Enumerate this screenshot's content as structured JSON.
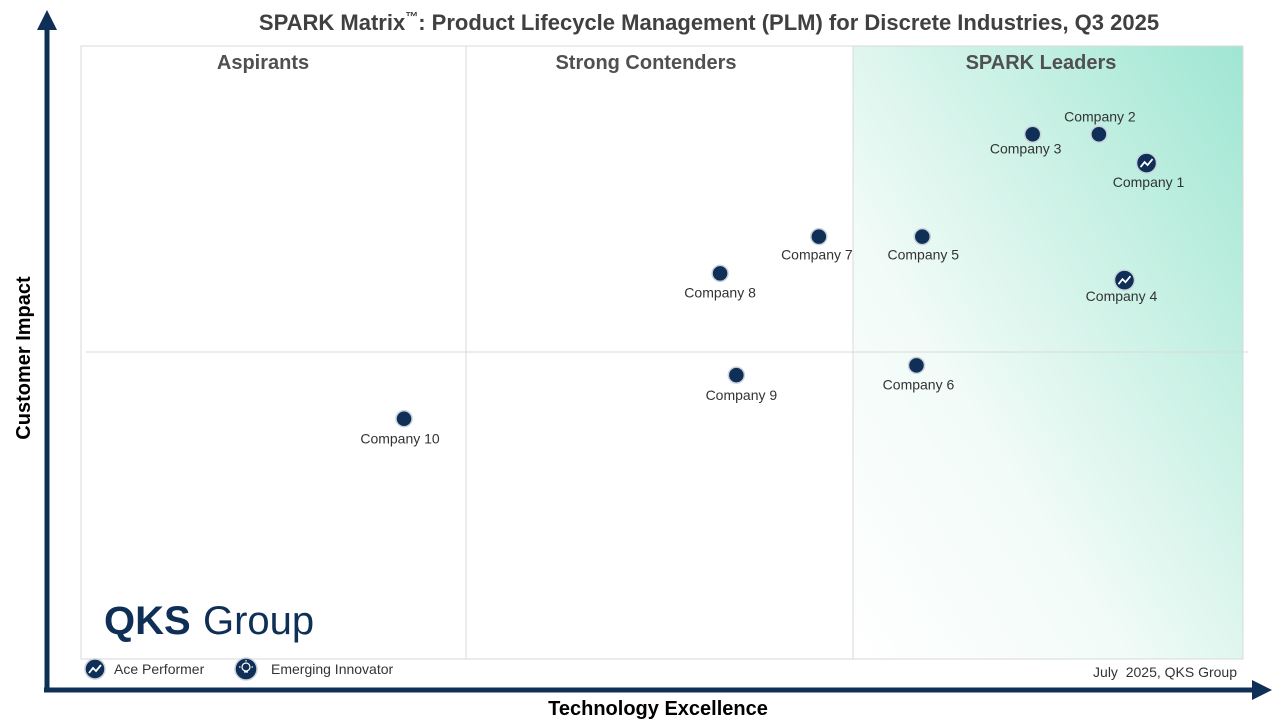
{
  "chart_data": {
    "type": "scatter",
    "title": "SPARK Matrix",
    "title_tm": "™",
    "title_rest": ": Product Lifecycle Management (PLM) for Discrete Industries, Q3 2025",
    "xlabel": "Technology Excellence",
    "ylabel": "Customer Impact",
    "xlim": [
      0,
      100
    ],
    "ylim": [
      0,
      100
    ],
    "segments": [
      "Aspirants",
      "Strong Contenders",
      "SPARK Leaders"
    ],
    "points": [
      {
        "label": "Company 1",
        "x": 91.7,
        "y": 80.9,
        "marker": "ace"
      },
      {
        "label": "Company 2",
        "x": 87.6,
        "y": 85.6,
        "marker": "dot"
      },
      {
        "label": "Company 3",
        "x": 81.9,
        "y": 85.6,
        "marker": "dot"
      },
      {
        "label": "Company 4",
        "x": 89.8,
        "y": 61.8,
        "marker": "ace"
      },
      {
        "label": "Company 5",
        "x": 72.4,
        "y": 68.9,
        "marker": "dot"
      },
      {
        "label": "Company 6",
        "x": 71.9,
        "y": 47.9,
        "marker": "dot"
      },
      {
        "label": "Company 7",
        "x": 63.5,
        "y": 68.9,
        "marker": "dot"
      },
      {
        "label": "Company 8",
        "x": 55.0,
        "y": 62.9,
        "marker": "dot"
      },
      {
        "label": "Company 9",
        "x": 56.4,
        "y": 46.3,
        "marker": "dot"
      },
      {
        "label": "Company 10",
        "x": 27.8,
        "y": 39.2,
        "marker": "dot"
      }
    ],
    "legend": [
      {
        "name": "Ace Performer",
        "icon": "trend-up-icon"
      },
      {
        "name": "Emerging Innovator",
        "icon": "lightbulb-icon"
      }
    ],
    "legend_position": "bottom-left",
    "grid": false,
    "footnote": "July  2025, QKS Group",
    "logo": {
      "bold": "QKS",
      "light": "Group"
    },
    "colors": {
      "marker": "#0f2f57",
      "axis": "#0f2f57",
      "leaders_gradient": "#9fe6d2",
      "border": "#d9d9d9"
    }
  }
}
